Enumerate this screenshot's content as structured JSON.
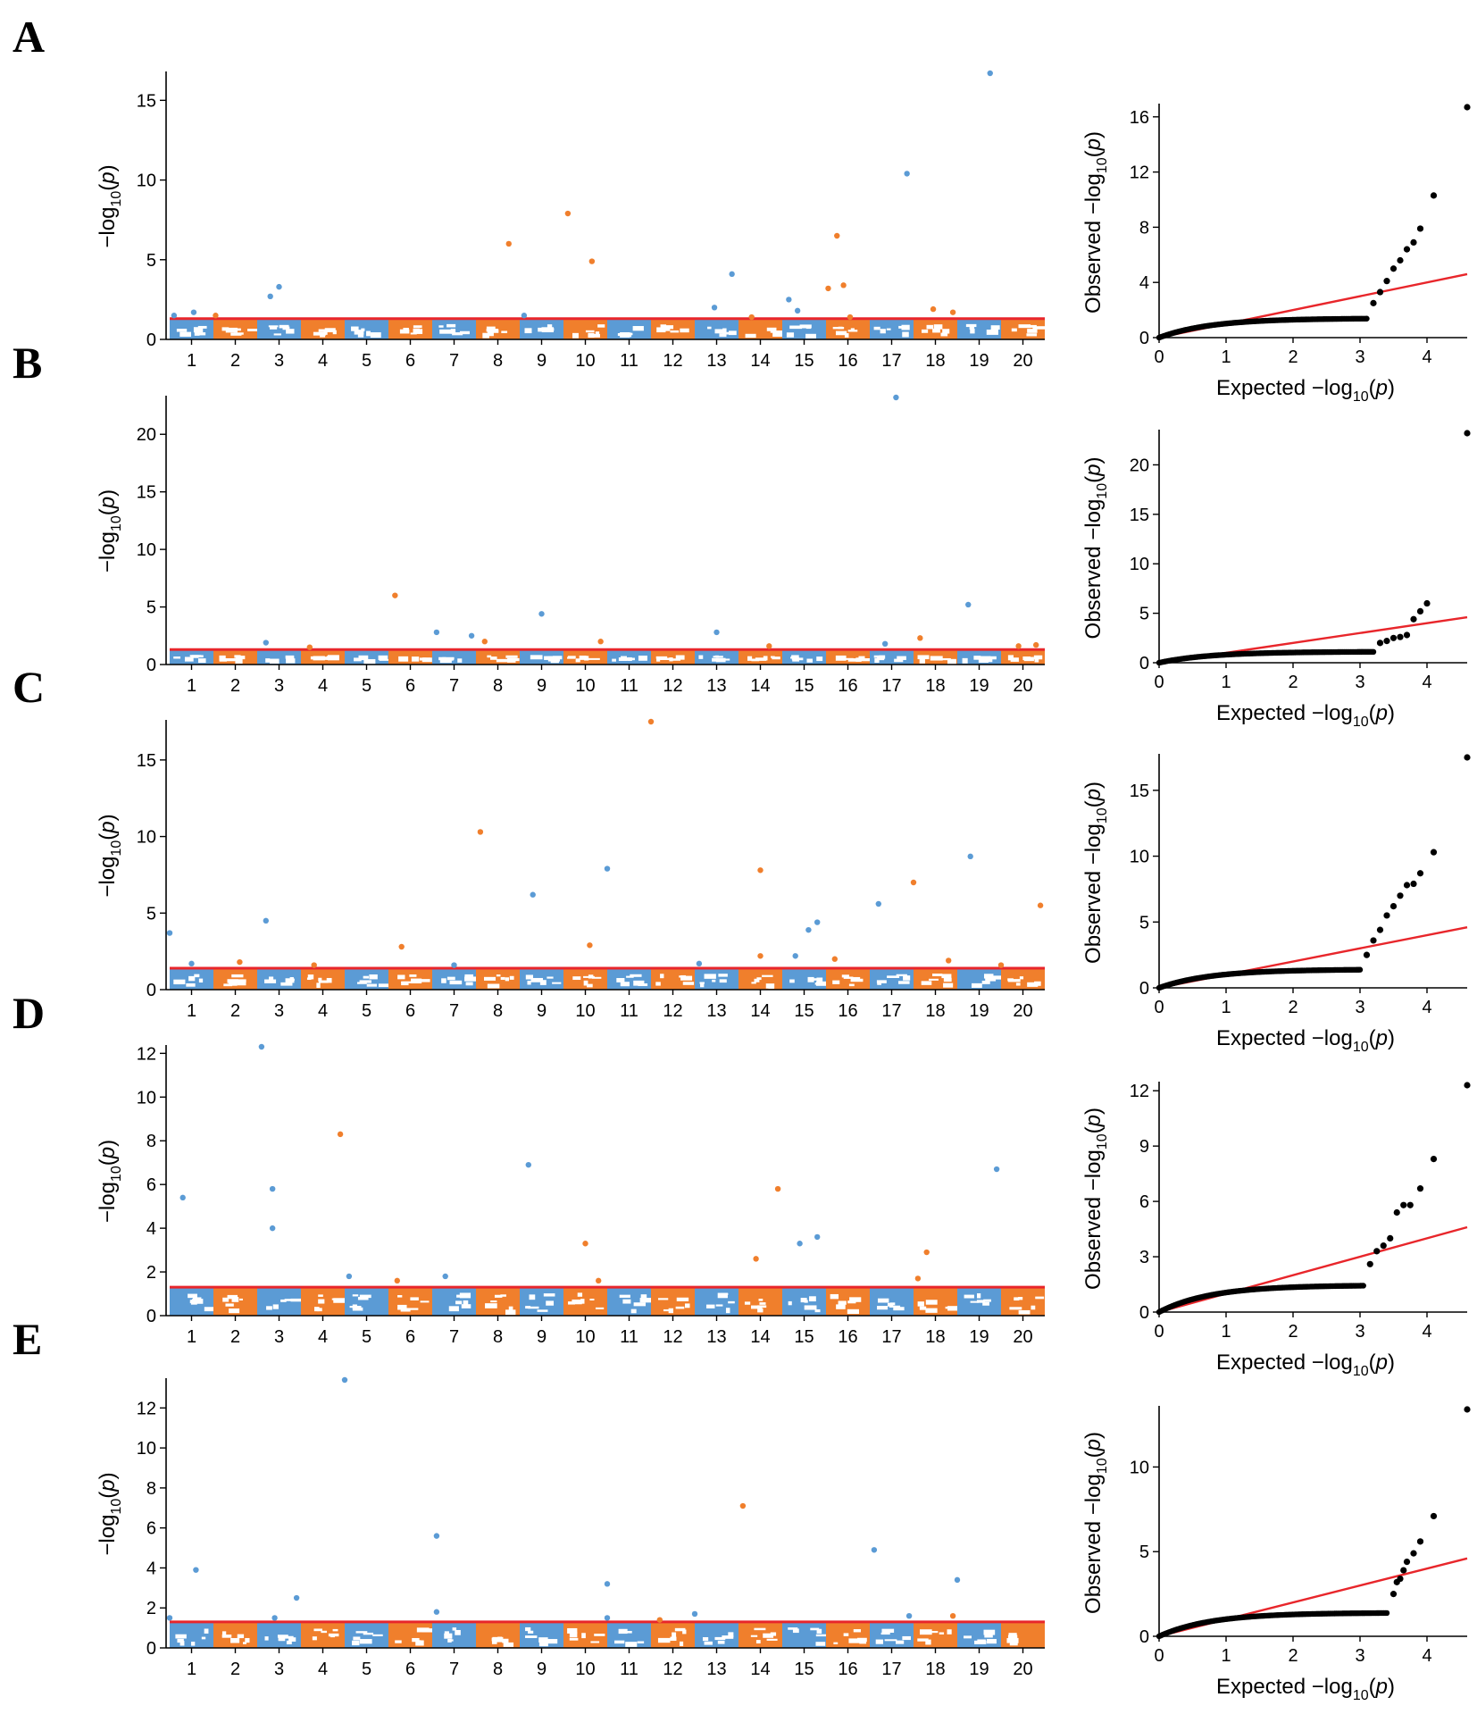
{
  "colors": {
    "blue": "#5b9bd5",
    "orange": "#f07f2c",
    "threshold": "#e8262b",
    "qq_points": "#000000",
    "axis": "#000000"
  },
  "chart_data": [
    {
      "panel": "A",
      "type": "scatter",
      "subtype": "manhattan",
      "xlabel": "",
      "ylabel": "-log10(p)",
      "chromosomes": [
        "1",
        "2",
        "3",
        "4",
        "5",
        "6",
        "7",
        "8",
        "9",
        "10",
        "11",
        "12",
        "13",
        "14",
        "15",
        "16",
        "17",
        "18",
        "19",
        "20"
      ],
      "ylim": [
        0,
        16.7
      ],
      "yticks": [
        0,
        5,
        10,
        15
      ],
      "threshold": 1.3,
      "peaks": [
        {
          "chr": 1,
          "pos": 0.1,
          "y": 1.5
        },
        {
          "chr": 1,
          "pos": 0.55,
          "y": 1.7
        },
        {
          "chr": 2,
          "pos": 0.05,
          "y": 1.5
        },
        {
          "chr": 3,
          "pos": 0.3,
          "y": 2.7
        },
        {
          "chr": 3,
          "pos": 0.5,
          "y": 3.3
        },
        {
          "chr": 8,
          "pos": 0.75,
          "y": 6.0
        },
        {
          "chr": 9,
          "pos": 0.1,
          "y": 1.5
        },
        {
          "chr": 10,
          "pos": 0.1,
          "y": 7.9
        },
        {
          "chr": 10,
          "pos": 0.65,
          "y": 4.9
        },
        {
          "chr": 13,
          "pos": 0.45,
          "y": 2.0
        },
        {
          "chr": 13,
          "pos": 0.85,
          "y": 4.1
        },
        {
          "chr": 14,
          "pos": 0.3,
          "y": 1.4
        },
        {
          "chr": 15,
          "pos": 0.15,
          "y": 2.5
        },
        {
          "chr": 15,
          "pos": 0.35,
          "y": 1.8
        },
        {
          "chr": 16,
          "pos": 0.05,
          "y": 3.2
        },
        {
          "chr": 16,
          "pos": 0.25,
          "y": 6.5
        },
        {
          "chr": 16,
          "pos": 0.4,
          "y": 3.4
        },
        {
          "chr": 16,
          "pos": 0.55,
          "y": 1.4
        },
        {
          "chr": 17,
          "pos": 0.85,
          "y": 10.4
        },
        {
          "chr": 18,
          "pos": 0.45,
          "y": 1.9
        },
        {
          "chr": 18,
          "pos": 0.9,
          "y": 1.7
        },
        {
          "chr": 19,
          "pos": 0.75,
          "y": 16.7
        }
      ]
    },
    {
      "panel": "A",
      "type": "scatter",
      "subtype": "qq",
      "xlabel": "Expected -log10(p)",
      "ylabel": "Observed -log10(p)",
      "xlim": [
        0,
        4.6
      ],
      "ylim": [
        0,
        16.7
      ],
      "xticks": [
        0,
        1,
        2,
        3,
        4
      ],
      "yticks": [
        0,
        4,
        8,
        12,
        16
      ],
      "series": [
        {
          "name": "expected line",
          "x": [
            0,
            4.6
          ],
          "y": [
            0,
            4.6
          ]
        },
        {
          "name": "tail points",
          "x": [
            3.2,
            3.3,
            3.4,
            3.5,
            3.6,
            3.7,
            3.8,
            3.9,
            4.1,
            4.6
          ],
          "y": [
            2.5,
            3.3,
            4.1,
            5.0,
            5.6,
            6.4,
            6.9,
            7.9,
            10.3,
            16.7
          ]
        }
      ]
    },
    {
      "panel": "B",
      "type": "scatter",
      "subtype": "manhattan",
      "xlabel": "",
      "ylabel": "-log10(p)",
      "chromosomes": [
        "1",
        "2",
        "3",
        "4",
        "5",
        "6",
        "7",
        "8",
        "9",
        "10",
        "11",
        "12",
        "13",
        "14",
        "15",
        "16",
        "17",
        "18",
        "19",
        "20"
      ],
      "ylim": [
        0,
        23.2
      ],
      "yticks": [
        0,
        5,
        10,
        15,
        20
      ],
      "threshold": 1.3,
      "peaks": [
        {
          "chr": 3,
          "pos": 0.2,
          "y": 1.9
        },
        {
          "chr": 4,
          "pos": 0.2,
          "y": 1.5
        },
        {
          "chr": 6,
          "pos": 0.15,
          "y": 6.0
        },
        {
          "chr": 7,
          "pos": 0.1,
          "y": 2.8
        },
        {
          "chr": 7,
          "pos": 0.9,
          "y": 2.5
        },
        {
          "chr": 8,
          "pos": 0.2,
          "y": 2.0
        },
        {
          "chr": 9,
          "pos": 0.5,
          "y": 4.4
        },
        {
          "chr": 10,
          "pos": 0.85,
          "y": 2.0
        },
        {
          "chr": 13,
          "pos": 0.5,
          "y": 2.8
        },
        {
          "chr": 14,
          "pos": 0.7,
          "y": 1.6
        },
        {
          "chr": 17,
          "pos": 0.35,
          "y": 1.8
        },
        {
          "chr": 17,
          "pos": 0.6,
          "y": 23.2
        },
        {
          "chr": 18,
          "pos": 0.15,
          "y": 2.3
        },
        {
          "chr": 19,
          "pos": 0.25,
          "y": 5.2
        },
        {
          "chr": 20,
          "pos": 0.4,
          "y": 1.6
        },
        {
          "chr": 20,
          "pos": 0.8,
          "y": 1.7
        }
      ]
    },
    {
      "panel": "B",
      "type": "scatter",
      "subtype": "qq",
      "xlabel": "Expected -log10(p)",
      "ylabel": "Observed -log10(p)",
      "xlim": [
        0,
        4.6
      ],
      "ylim": [
        0,
        23.2
      ],
      "xticks": [
        0,
        1,
        2,
        3,
        4
      ],
      "yticks": [
        0,
        5,
        10,
        15,
        20
      ],
      "series": [
        {
          "name": "expected line",
          "x": [
            0,
            4.6
          ],
          "y": [
            0,
            4.6
          ]
        },
        {
          "name": "tail points",
          "x": [
            3.3,
            3.4,
            3.5,
            3.6,
            3.7,
            3.8,
            3.9,
            4.0,
            4.6
          ],
          "y": [
            2.0,
            2.2,
            2.5,
            2.6,
            2.8,
            4.4,
            5.2,
            6.0,
            23.2
          ]
        }
      ]
    },
    {
      "panel": "C",
      "type": "scatter",
      "subtype": "manhattan",
      "xlabel": "",
      "ylabel": "-log10(p)",
      "chromosomes": [
        "1",
        "2",
        "3",
        "4",
        "5",
        "6",
        "7",
        "8",
        "9",
        "10",
        "11",
        "12",
        "13",
        "14",
        "15",
        "16",
        "17",
        "18",
        "19",
        "20"
      ],
      "ylim": [
        0,
        17.5
      ],
      "yticks": [
        0,
        5,
        10,
        15
      ],
      "threshold": 1.4,
      "peaks": [
        {
          "chr": 1,
          "pos": 0.0,
          "y": 3.7
        },
        {
          "chr": 1,
          "pos": 0.5,
          "y": 1.7
        },
        {
          "chr": 2,
          "pos": 0.6,
          "y": 1.8
        },
        {
          "chr": 3,
          "pos": 0.2,
          "y": 4.5
        },
        {
          "chr": 4,
          "pos": 0.3,
          "y": 1.6
        },
        {
          "chr": 6,
          "pos": 0.3,
          "y": 2.8
        },
        {
          "chr": 7,
          "pos": 0.5,
          "y": 1.6
        },
        {
          "chr": 8,
          "pos": 0.1,
          "y": 10.3
        },
        {
          "chr": 9,
          "pos": 0.3,
          "y": 6.2
        },
        {
          "chr": 10,
          "pos": 0.6,
          "y": 2.9
        },
        {
          "chr": 11,
          "pos": 0.0,
          "y": 7.9
        },
        {
          "chr": 12,
          "pos": 0.0,
          "y": 17.5
        },
        {
          "chr": 13,
          "pos": 0.1,
          "y": 1.7
        },
        {
          "chr": 14,
          "pos": 0.5,
          "y": 7.8
        },
        {
          "chr": 14,
          "pos": 0.5,
          "y": 2.2
        },
        {
          "chr": 15,
          "pos": 0.3,
          "y": 2.2
        },
        {
          "chr": 15,
          "pos": 0.6,
          "y": 3.9
        },
        {
          "chr": 15,
          "pos": 0.8,
          "y": 4.4
        },
        {
          "chr": 16,
          "pos": 0.2,
          "y": 2.0
        },
        {
          "chr": 17,
          "pos": 0.2,
          "y": 5.6
        },
        {
          "chr": 18,
          "pos": 0.0,
          "y": 7.0
        },
        {
          "chr": 18,
          "pos": 0.8,
          "y": 1.9
        },
        {
          "chr": 19,
          "pos": 0.3,
          "y": 8.7
        },
        {
          "chr": 20,
          "pos": 0.0,
          "y": 1.6
        },
        {
          "chr": 20,
          "pos": 0.9,
          "y": 5.5
        }
      ]
    },
    {
      "panel": "C",
      "type": "scatter",
      "subtype": "qq",
      "xlabel": "Expected -log10(p)",
      "ylabel": "Observed -log10(p)",
      "xlim": [
        0,
        4.6
      ],
      "ylim": [
        0,
        17.5
      ],
      "xticks": [
        0,
        1,
        2,
        3,
        4
      ],
      "yticks": [
        0,
        5,
        10,
        15
      ],
      "series": [
        {
          "name": "expected line",
          "x": [
            0,
            4.6
          ],
          "y": [
            0,
            4.6
          ]
        },
        {
          "name": "tail points",
          "x": [
            3.1,
            3.2,
            3.3,
            3.4,
            3.5,
            3.6,
            3.7,
            3.8,
            3.9,
            4.1,
            4.6
          ],
          "y": [
            2.5,
            3.6,
            4.4,
            5.5,
            6.2,
            7.0,
            7.8,
            7.9,
            8.7,
            10.3,
            17.5
          ]
        }
      ]
    },
    {
      "panel": "D",
      "type": "scatter",
      "subtype": "manhattan",
      "xlabel": "",
      "ylabel": "-log10(p)",
      "chromosomes": [
        "1",
        "2",
        "3",
        "4",
        "5",
        "6",
        "7",
        "8",
        "9",
        "10",
        "11",
        "12",
        "13",
        "14",
        "15",
        "16",
        "17",
        "18",
        "19",
        "20"
      ],
      "ylim": [
        0,
        12.3
      ],
      "yticks": [
        0,
        2,
        4,
        6,
        8,
        10,
        12
      ],
      "threshold": 1.3,
      "peaks": [
        {
          "chr": 1,
          "pos": 0.3,
          "y": 5.4
        },
        {
          "chr": 3,
          "pos": 0.1,
          "y": 12.3
        },
        {
          "chr": 3,
          "pos": 0.35,
          "y": 5.8
        },
        {
          "chr": 3,
          "pos": 0.35,
          "y": 4.0
        },
        {
          "chr": 4,
          "pos": 0.9,
          "y": 8.3
        },
        {
          "chr": 5,
          "pos": 0.1,
          "y": 1.8
        },
        {
          "chr": 6,
          "pos": 0.2,
          "y": 1.6
        },
        {
          "chr": 7,
          "pos": 0.3,
          "y": 1.8
        },
        {
          "chr": 9,
          "pos": 0.2,
          "y": 6.9
        },
        {
          "chr": 10,
          "pos": 0.5,
          "y": 3.3
        },
        {
          "chr": 10,
          "pos": 0.8,
          "y": 1.6
        },
        {
          "chr": 14,
          "pos": 0.4,
          "y": 2.6
        },
        {
          "chr": 14,
          "pos": 0.9,
          "y": 5.8
        },
        {
          "chr": 15,
          "pos": 0.4,
          "y": 3.3
        },
        {
          "chr": 15,
          "pos": 0.8,
          "y": 3.6
        },
        {
          "chr": 18,
          "pos": 0.1,
          "y": 1.7
        },
        {
          "chr": 18,
          "pos": 0.3,
          "y": 2.9
        },
        {
          "chr": 19,
          "pos": 0.9,
          "y": 6.7
        }
      ]
    },
    {
      "panel": "D",
      "type": "scatter",
      "subtype": "qq",
      "xlabel": "Expected -log10(p)",
      "ylabel": "Observed -log10(p)",
      "xlim": [
        0,
        4.6
      ],
      "ylim": [
        0,
        12.3
      ],
      "xticks": [
        0,
        1,
        2,
        3,
        4
      ],
      "yticks": [
        0,
        3,
        6,
        9,
        12
      ],
      "series": [
        {
          "name": "expected line",
          "x": [
            0,
            4.6
          ],
          "y": [
            0,
            4.6
          ]
        },
        {
          "name": "tail points",
          "x": [
            3.15,
            3.25,
            3.35,
            3.45,
            3.55,
            3.65,
            3.75,
            3.9,
            4.1,
            4.6
          ],
          "y": [
            2.6,
            3.3,
            3.6,
            4.0,
            5.4,
            5.8,
            5.8,
            6.7,
            8.3,
            12.3
          ]
        }
      ]
    },
    {
      "panel": "E",
      "type": "scatter",
      "subtype": "manhattan",
      "xlabel": "",
      "ylabel": "-log10(p)",
      "chromosomes": [
        "1",
        "2",
        "3",
        "4",
        "5",
        "6",
        "7",
        "8",
        "9",
        "10",
        "11",
        "12",
        "13",
        "14",
        "15",
        "16",
        "17",
        "18",
        "19",
        "20"
      ],
      "ylim": [
        0,
        13.4
      ],
      "yticks": [
        0,
        2,
        4,
        6,
        8,
        10,
        12
      ],
      "threshold": 1.3,
      "peaks": [
        {
          "chr": 1,
          "pos": 0.0,
          "y": 1.5
        },
        {
          "chr": 1,
          "pos": 0.6,
          "y": 3.9
        },
        {
          "chr": 3,
          "pos": 0.4,
          "y": 1.5
        },
        {
          "chr": 3,
          "pos": 0.9,
          "y": 2.5
        },
        {
          "chr": 5,
          "pos": 0.0,
          "y": 13.4
        },
        {
          "chr": 7,
          "pos": 0.1,
          "y": 5.6
        },
        {
          "chr": 7,
          "pos": 0.1,
          "y": 1.8
        },
        {
          "chr": 11,
          "pos": 0.0,
          "y": 3.2
        },
        {
          "chr": 11,
          "pos": 0.0,
          "y": 1.5
        },
        {
          "chr": 12,
          "pos": 0.2,
          "y": 1.4
        },
        {
          "chr": 13,
          "pos": 0.0,
          "y": 1.7
        },
        {
          "chr": 14,
          "pos": 0.1,
          "y": 7.1
        },
        {
          "chr": 17,
          "pos": 0.1,
          "y": 4.9
        },
        {
          "chr": 17,
          "pos": 0.9,
          "y": 1.6
        },
        {
          "chr": 18,
          "pos": 0.9,
          "y": 1.6
        },
        {
          "chr": 19,
          "pos": 0.0,
          "y": 3.4
        }
      ]
    },
    {
      "panel": "E",
      "type": "scatter",
      "subtype": "qq",
      "xlabel": "Expected -log10(p)",
      "ylabel": "Observed -log10(p)",
      "xlim": [
        0,
        4.6
      ],
      "ylim": [
        0,
        13.4
      ],
      "xticks": [
        0,
        1,
        2,
        3,
        4
      ],
      "yticks": [
        0,
        5,
        10
      ],
      "series": [
        {
          "name": "expected line",
          "x": [
            0,
            4.6
          ],
          "y": [
            0,
            4.6
          ]
        },
        {
          "name": "tail points",
          "x": [
            3.5,
            3.55,
            3.6,
            3.65,
            3.7,
            3.8,
            3.9,
            4.1,
            4.6
          ],
          "y": [
            2.5,
            3.2,
            3.4,
            3.9,
            4.4,
            4.9,
            5.6,
            7.1,
            13.4
          ]
        }
      ]
    }
  ]
}
